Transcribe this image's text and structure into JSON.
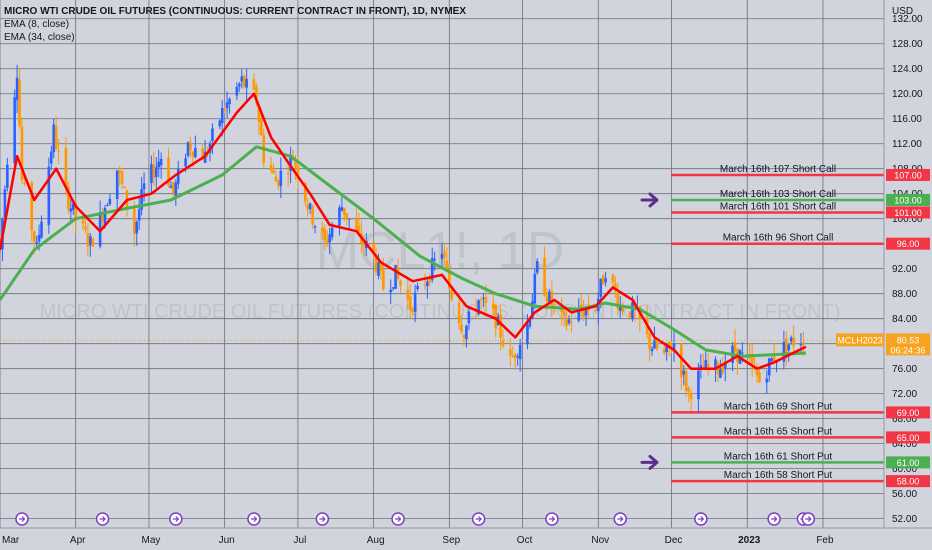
{
  "chart_data": {
    "type": "candlestick",
    "title": "MICRO WTI CRUDE OIL FUTURES (CONTINUOUS: CURRENT CONTRACT IN FRONT), 1D, NYMEX",
    "indicators": [
      "EMA (8, close)",
      "EMA (34, close)"
    ],
    "watermark": {
      "symbol": "MCL1!, 1D",
      "name": "MICRO WTI CRUDE OIL FUTURES (CONTINUOUS: CURRENT CONTRACT IN FRONT)"
    },
    "y_axis": {
      "unit": "USD",
      "ticks": [
        "132.00",
        "128.00",
        "124.00",
        "120.00",
        "116.00",
        "112.00",
        "108.00",
        "104.00",
        "100.00",
        "96.00",
        "92.00",
        "88.00",
        "84.00",
        "80.00",
        "76.00",
        "72.00",
        "68.00",
        "64.00",
        "60.00",
        "56.00",
        "52.00"
      ],
      "range": [
        50.5,
        135.0
      ]
    },
    "x_axis": {
      "labels": [
        {
          "date": "2022-03-01",
          "text": "Mar"
        },
        {
          "date": "2022-04-01",
          "text": "Apr"
        },
        {
          "date": "2022-05-01",
          "text": "May"
        },
        {
          "date": "2022-06-01",
          "text": "Jun"
        },
        {
          "date": "2022-07-01",
          "text": "Jul"
        },
        {
          "date": "2022-08-01",
          "text": "Aug"
        },
        {
          "date": "2022-09-01",
          "text": "Sep"
        },
        {
          "date": "2022-10-01",
          "text": "Oct"
        },
        {
          "date": "2022-11-01",
          "text": "Nov"
        },
        {
          "date": "2022-12-01",
          "text": "Dec"
        },
        {
          "date": "2023-01-01",
          "text": "2023"
        },
        {
          "date": "2023-02-01",
          "text": "Feb"
        }
      ],
      "range": [
        "2022-03-01",
        "2023-02-26"
      ]
    },
    "price_path": [
      [
        "2022-03-01",
        95.0
      ],
      [
        "2022-03-04",
        110.0
      ],
      [
        "2022-03-08",
        124.0
      ],
      [
        "2022-03-10",
        106.0
      ],
      [
        "2022-03-16",
        95.0
      ],
      [
        "2022-03-23",
        114.0
      ],
      [
        "2022-03-28",
        104.0
      ],
      [
        "2022-04-01",
        100.0
      ],
      [
        "2022-04-07",
        96.0
      ],
      [
        "2022-04-12",
        101.0
      ],
      [
        "2022-04-18",
        108.0
      ],
      [
        "2022-04-25",
        98.0
      ],
      [
        "2022-04-29",
        105.0
      ],
      [
        "2022-05-06",
        110.0
      ],
      [
        "2022-05-11",
        104.0
      ],
      [
        "2022-05-17",
        112.0
      ],
      [
        "2022-05-24",
        110.0
      ],
      [
        "2022-05-31",
        117.0
      ],
      [
        "2022-06-08",
        122.0
      ],
      [
        "2022-06-14",
        119.0
      ],
      [
        "2022-06-17",
        110.0
      ],
      [
        "2022-06-22",
        106.0
      ],
      [
        "2022-06-29",
        110.0
      ],
      [
        "2022-07-06",
        101.0
      ],
      [
        "2022-07-12",
        96.0
      ],
      [
        "2022-07-19",
        102.0
      ],
      [
        "2022-07-26",
        97.0
      ],
      [
        "2022-08-01",
        94.0
      ],
      [
        "2022-08-05",
        89.0
      ],
      [
        "2022-08-10",
        91.0
      ],
      [
        "2022-08-16",
        86.0
      ],
      [
        "2022-08-22",
        90.0
      ],
      [
        "2022-08-29",
        95.0
      ],
      [
        "2022-09-01",
        89.0
      ],
      [
        "2022-09-07",
        82.0
      ],
      [
        "2022-09-13",
        87.0
      ],
      [
        "2022-09-20",
        84.0
      ],
      [
        "2022-09-26",
        77.0
      ],
      [
        "2022-10-03",
        83.0
      ],
      [
        "2022-10-07",
        92.0
      ],
      [
        "2022-10-12",
        87.0
      ],
      [
        "2022-10-18",
        83.0
      ],
      [
        "2022-10-24",
        85.0
      ],
      [
        "2022-10-31",
        86.0
      ],
      [
        "2022-11-04",
        92.0
      ],
      [
        "2022-11-10",
        86.0
      ],
      [
        "2022-11-16",
        85.0
      ],
      [
        "2022-11-22",
        80.0
      ],
      [
        "2022-11-28",
        78.0
      ],
      [
        "2022-12-02",
        80.0
      ],
      [
        "2022-12-08",
        72.0
      ],
      [
        "2022-12-14",
        76.0
      ],
      [
        "2022-12-20",
        76.0
      ],
      [
        "2022-12-27",
        79.0
      ],
      [
        "2023-01-03",
        76.0
      ],
      [
        "2023-01-06",
        74.0
      ],
      [
        "2023-01-12",
        78.0
      ],
      [
        "2023-01-18",
        80.0
      ],
      [
        "2023-01-24",
        81.0
      ]
    ],
    "ema_fast": [
      [
        "2022-03-01",
        95.0
      ],
      [
        "2022-03-08",
        110.0
      ],
      [
        "2022-03-15",
        103.0
      ],
      [
        "2022-03-24",
        108.0
      ],
      [
        "2022-04-01",
        102.0
      ],
      [
        "2022-04-11",
        98.0
      ],
      [
        "2022-04-22",
        103.0
      ],
      [
        "2022-05-02",
        104.0
      ],
      [
        "2022-05-12",
        107.0
      ],
      [
        "2022-05-24",
        110.0
      ],
      [
        "2022-06-06",
        117.0
      ],
      [
        "2022-06-13",
        120.0
      ],
      [
        "2022-06-20",
        113.0
      ],
      [
        "2022-06-27",
        109.0
      ],
      [
        "2022-07-06",
        104.0
      ],
      [
        "2022-07-14",
        99.0
      ],
      [
        "2022-07-25",
        98.0
      ],
      [
        "2022-08-04",
        93.0
      ],
      [
        "2022-08-17",
        90.0
      ],
      [
        "2022-08-29",
        91.0
      ],
      [
        "2022-09-08",
        86.0
      ],
      [
        "2022-09-20",
        84.0
      ],
      [
        "2022-09-28",
        81.0
      ],
      [
        "2022-10-06",
        85.0
      ],
      [
        "2022-10-14",
        87.0
      ],
      [
        "2022-10-21",
        85.0
      ],
      [
        "2022-10-31",
        86.0
      ],
      [
        "2022-11-07",
        89.0
      ],
      [
        "2022-11-15",
        87.0
      ],
      [
        "2022-11-24",
        81.0
      ],
      [
        "2022-12-02",
        79.0
      ],
      [
        "2022-12-09",
        76.0
      ],
      [
        "2022-12-19",
        76.0
      ],
      [
        "2022-12-28",
        78.0
      ],
      [
        "2023-01-05",
        76.0
      ],
      [
        "2023-01-12",
        77.0
      ],
      [
        "2023-01-25",
        79.5
      ]
    ],
    "ema_slow": [
      [
        "2022-03-01",
        87.0
      ],
      [
        "2022-03-15",
        95.0
      ],
      [
        "2022-04-01",
        100.0
      ],
      [
        "2022-04-20",
        101.5
      ],
      [
        "2022-05-10",
        103.0
      ],
      [
        "2022-05-31",
        107.0
      ],
      [
        "2022-06-14",
        111.5
      ],
      [
        "2022-06-28",
        110.0
      ],
      [
        "2022-07-15",
        105.0
      ],
      [
        "2022-08-01",
        100.0
      ],
      [
        "2022-08-20",
        94.0
      ],
      [
        "2022-09-06",
        90.5
      ],
      [
        "2022-09-20",
        88.0
      ],
      [
        "2022-10-06",
        86.0
      ],
      [
        "2022-10-24",
        85.5
      ],
      [
        "2022-11-04",
        86.5
      ],
      [
        "2022-11-18",
        85.5
      ],
      [
        "2022-12-01",
        82.5
      ],
      [
        "2022-12-15",
        79.0
      ],
      [
        "2022-12-30",
        78.0
      ],
      [
        "2023-01-25",
        78.5
      ]
    ],
    "annotations": [
      {
        "label": "March 16th 107 Short Call",
        "price": 107.0,
        "line_color": "#f23645",
        "price_label": "107.00",
        "arrow": false
      },
      {
        "label": "March 16th 103 Short Call",
        "price": 103.0,
        "line_color": "#4caf50",
        "price_label": "103.00",
        "arrow": true
      },
      {
        "label": "March 16th 101 Short Call",
        "price": 101.0,
        "line_color": "#f23645",
        "price_label": "101.00",
        "arrow": false
      },
      {
        "label": "March 16th 96 Short Call",
        "price": 96.0,
        "line_color": "#f23645",
        "price_label": "96.00",
        "arrow": false
      },
      {
        "label": "March 16th 69 Short Put",
        "price": 69.0,
        "line_color": "#f23645",
        "price_label": "69.00",
        "arrow": false
      },
      {
        "label": "March 16th 65 Short Put",
        "price": 65.0,
        "line_color": "#f23645",
        "price_label": "65.00",
        "arrow": false
      },
      {
        "label": "March 16th 61 Short Put",
        "price": 61.0,
        "line_color": "#4caf50",
        "price_label": "61.00",
        "arrow": true
      },
      {
        "label": "March 16th 58 Short Put",
        "price": 58.0,
        "line_color": "#f23645",
        "price_label": "58.00",
        "arrow": false
      }
    ],
    "last_price": {
      "price": 80.53,
      "symbol": "MCLH2023",
      "value": "80.53",
      "countdown": "06:24:36",
      "color": "#f7a31e"
    },
    "events": [
      "2022-03-10",
      "2022-04-12",
      "2022-05-12",
      "2022-06-13",
      "2022-07-11",
      "2022-08-11",
      "2022-09-13",
      "2022-10-13",
      "2022-11-10",
      "2022-12-13",
      "2023-01-12",
      "2023-01-24",
      "2023-01-26"
    ],
    "colors": {
      "up": "#2962ff",
      "down": "#ff9800",
      "ema_fast": "#ff0000",
      "ema_slow": "#4caf50",
      "grid": "#6b6f7a",
      "background": "#d1d4dc",
      "arrow": "#5b2d8c"
    },
    "grid": true
  }
}
